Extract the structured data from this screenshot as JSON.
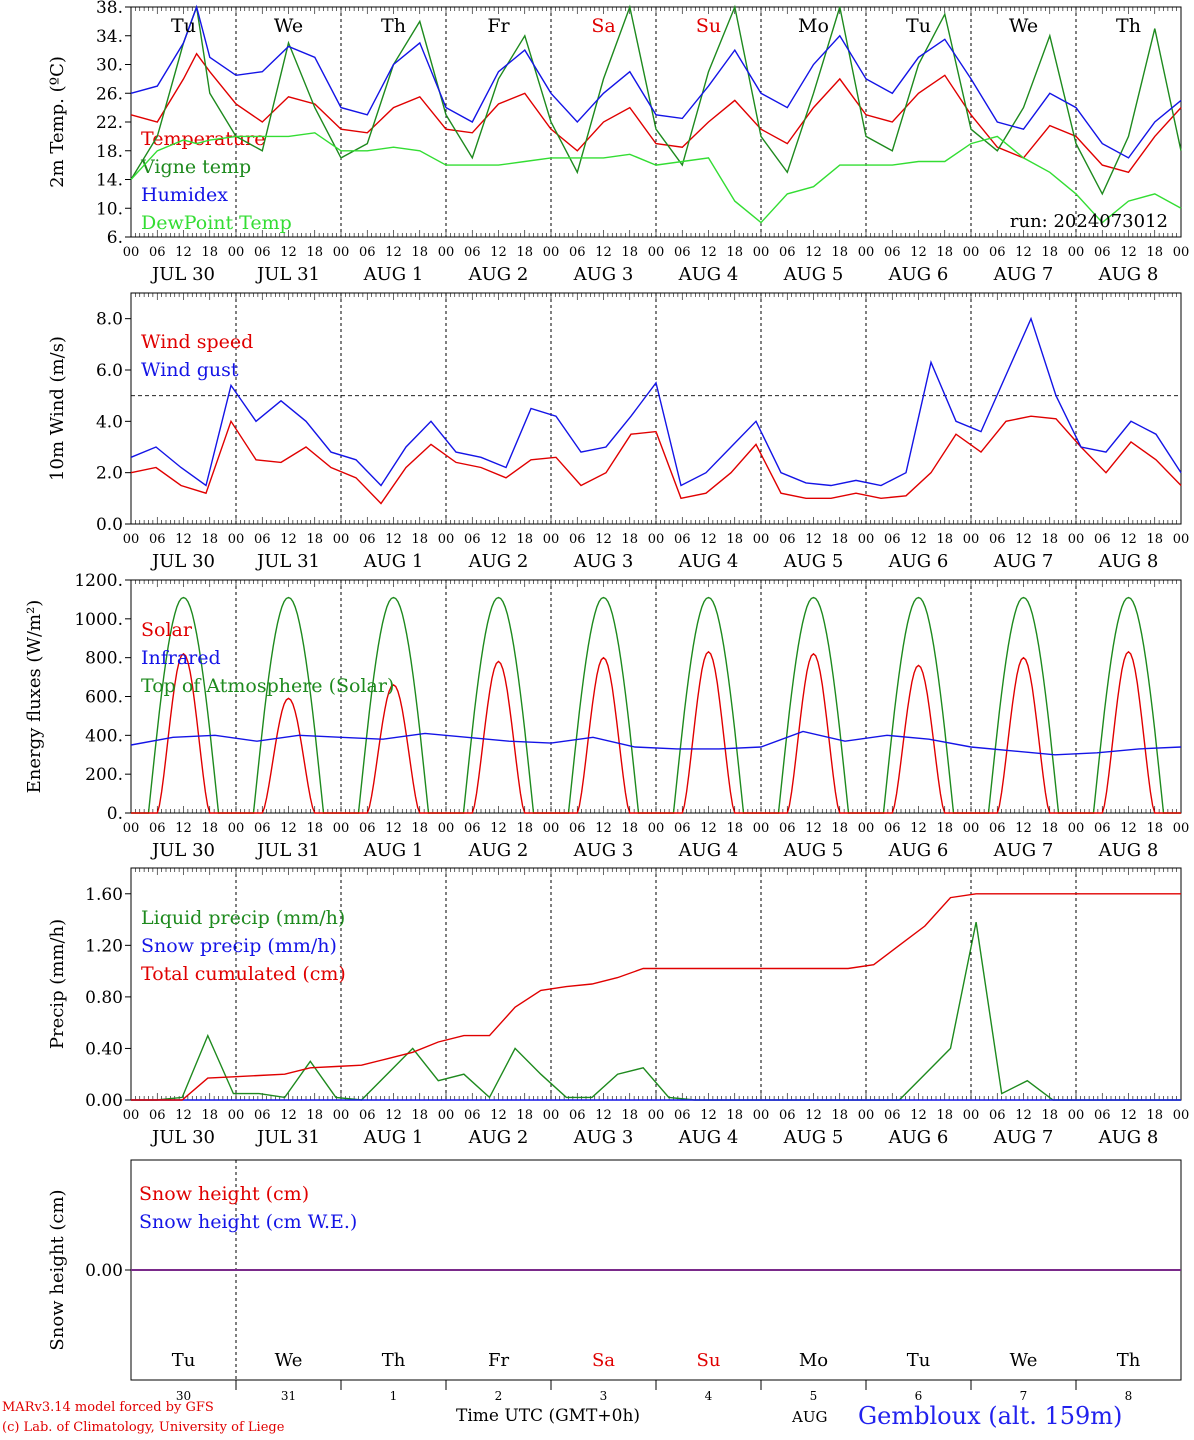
{
  "run_label": "run: 2024073012",
  "colors": {
    "red": "#e00000",
    "green": "#1e8a1e",
    "blue": "#1414e6",
    "lightgreen": "#33dd33",
    "purple": "#7a2a8a"
  },
  "weekdays": [
    {
      "label": "Tu",
      "color": "#000000"
    },
    {
      "label": "We",
      "color": "#000000"
    },
    {
      "label": "Th",
      "color": "#000000"
    },
    {
      "label": "Fr",
      "color": "#000000"
    },
    {
      "label": "Sa",
      "color": "#e00000"
    },
    {
      "label": "Su",
      "color": "#e00000"
    },
    {
      "label": "Mo",
      "color": "#000000"
    },
    {
      "label": "Tu",
      "color": "#000000"
    },
    {
      "label": "We",
      "color": "#000000"
    },
    {
      "label": "Th",
      "color": "#000000"
    }
  ],
  "dates": [
    "JUL 30",
    "JUL 31",
    "AUG 1",
    "AUG 2",
    "AUG 3",
    "AUG 4",
    "AUG 5",
    "AUG 6",
    "AUG 7",
    "AUG 8"
  ],
  "hour_ticks": [
    "00",
    "06",
    "12",
    "18"
  ],
  "day_numbers": [
    "30",
    "31",
    "1",
    "2",
    "3",
    "4",
    "5",
    "6",
    "7",
    "8"
  ],
  "footer": {
    "model": "MARv3.14 model forced by GFS",
    "lab": "(c) Lab. of Climatology, University of Liege",
    "time_label": "Time UTC (GMT+0h)",
    "month": "AUG",
    "station": "Gembloux (alt. 159m)"
  },
  "chart_data": [
    {
      "type": "line",
      "ylabel": "2m Temp. (ºC)",
      "ylim": [
        6,
        38
      ],
      "yticks": [
        "6.",
        "10.",
        "14.",
        "18.",
        "22.",
        "26.",
        "30.",
        "34.",
        "38."
      ],
      "grid": "vertical dashed at day boundaries",
      "x_hours": [
        0,
        6,
        12,
        15,
        18,
        24,
        30,
        36,
        42,
        48,
        54,
        60,
        66,
        72,
        78,
        84,
        90,
        96,
        102,
        108,
        114,
        120,
        126,
        132,
        138,
        144,
        150,
        156,
        162,
        168,
        174,
        180,
        186,
        192,
        198,
        204,
        210,
        216,
        222,
        228,
        234,
        240
      ],
      "series": [
        {
          "name": "Temperature",
          "color": "red",
          "values": [
            23,
            22,
            28,
            31.5,
            29,
            24.5,
            22,
            25.5,
            24.5,
            21,
            20.5,
            24,
            25.5,
            21,
            20.5,
            24.5,
            26,
            21,
            18,
            22,
            24,
            19,
            18.5,
            22,
            25,
            21,
            19,
            24,
            28,
            23,
            22,
            26,
            28.5,
            23,
            18.5,
            17,
            21.5,
            20,
            16,
            15,
            20,
            24
          ]
        },
        {
          "name": "Vigne temp",
          "color": "green",
          "values": [
            14,
            20,
            33,
            39,
            26,
            20,
            18,
            33,
            24,
            17,
            19,
            30,
            36,
            23,
            17,
            28,
            34,
            22,
            15,
            28,
            38,
            21,
            16,
            29,
            38,
            20,
            15,
            26,
            38,
            20,
            18,
            30,
            37,
            21,
            18,
            24,
            34,
            19,
            12,
            20,
            35,
            18
          ]
        },
        {
          "name": "Humidex",
          "color": "blue",
          "values": [
            26,
            27,
            33,
            38,
            31,
            28.5,
            29,
            32.5,
            31,
            24,
            23,
            30,
            33,
            24,
            22,
            29,
            32,
            26,
            22,
            26,
            29,
            23,
            22.5,
            27,
            32,
            26,
            24,
            30,
            34,
            28,
            26,
            31,
            33.5,
            28,
            22,
            21,
            26,
            24,
            19,
            17,
            22,
            25
          ]
        },
        {
          "name": "DewPoint Temp",
          "color": "lightgreen",
          "values": [
            14,
            18,
            19.5,
            19,
            19.5,
            20,
            20,
            20,
            20.5,
            18,
            18,
            18.5,
            18,
            16,
            16,
            16,
            16.5,
            17,
            17,
            17,
            17.5,
            16,
            16.5,
            17,
            11,
            8,
            12,
            13,
            16,
            16,
            16,
            16.5,
            16.5,
            19,
            20,
            17,
            15,
            12,
            8,
            11,
            12,
            10
          ]
        }
      ]
    },
    {
      "type": "line",
      "ylabel": "10m Wind (m/s)",
      "ylim": [
        0,
        9
      ],
      "yticks": [
        "0.0",
        "2.0",
        "4.0",
        "6.0",
        "8.0"
      ],
      "reference_line": 5,
      "series": [
        {
          "name": "Wind speed",
          "color": "red",
          "values": [
            2,
            2.2,
            1.5,
            1.2,
            4,
            2.5,
            2.4,
            3,
            2.2,
            1.8,
            0.8,
            2.2,
            3.1,
            2.4,
            2.2,
            1.8,
            2.5,
            2.6,
            1.5,
            2,
            3.5,
            3.6,
            1,
            1.2,
            2,
            3.1,
            1.2,
            1,
            1,
            1.2,
            1,
            1.1,
            2,
            3.5,
            2.8,
            4,
            4.2,
            4.1,
            3,
            2,
            3.2,
            2.5,
            1.5
          ]
        },
        {
          "name": "Wind gust",
          "color": "blue",
          "values": [
            2.6,
            3,
            2.2,
            1.5,
            5.4,
            4,
            4.8,
            4,
            2.8,
            2.5,
            1.5,
            3,
            4,
            2.8,
            2.6,
            2.2,
            4.5,
            4.2,
            2.8,
            3,
            4.2,
            5.5,
            1.5,
            2,
            3,
            4,
            2,
            1.6,
            1.5,
            1.7,
            1.5,
            2,
            6.3,
            4,
            3.6,
            5.8,
            8,
            5,
            3,
            2.8,
            4,
            3.5,
            2
          ]
        }
      ]
    },
    {
      "type": "line",
      "ylabel": "Energy fluxes (W/m²)",
      "ylim": [
        0,
        1200
      ],
      "yticks": [
        "0.",
        "200.",
        "400.",
        "600.",
        "800.",
        "1000.",
        "1200."
      ],
      "series": [
        {
          "name": "Solar",
          "color": "red",
          "day_peaks": [
            820,
            590,
            660,
            780,
            800,
            830,
            820,
            760,
            800,
            830
          ]
        },
        {
          "name": "Infrared",
          "color": "blue",
          "values": [
            350,
            390,
            400,
            370,
            400,
            390,
            380,
            410,
            390,
            370,
            360,
            390,
            340,
            330,
            330,
            340,
            420,
            370,
            400,
            380,
            340,
            320,
            300,
            310,
            330,
            340
          ]
        },
        {
          "name": "Top of Atmosphere (Solar)",
          "color": "green",
          "day_peak": 1110
        }
      ]
    },
    {
      "type": "line",
      "ylabel": "Precip (mm/h)",
      "ylim": [
        0,
        1.8
      ],
      "yticks": [
        "0.00",
        "0.40",
        "0.80",
        "1.20",
        "1.60"
      ],
      "series": [
        {
          "name": "Liquid precip (mm/h)",
          "color": "green",
          "values": [
            0,
            0,
            0.02,
            0.5,
            0.05,
            0.05,
            0.02,
            0.3,
            0.02,
            0,
            0.2,
            0.4,
            0.15,
            0.2,
            0.02,
            0.4,
            0.2,
            0.02,
            0.02,
            0.2,
            0.25,
            0.02,
            0,
            0,
            0,
            0,
            0,
            0,
            0,
            0,
            0,
            0.2,
            0.4,
            1.38,
            0.05,
            0.15,
            0,
            0,
            0,
            0,
            0,
            0
          ]
        },
        {
          "name": "Snow precip (mm/h)",
          "color": "blue",
          "values": [
            0,
            0,
            0,
            0,
            0,
            0,
            0,
            0,
            0,
            0,
            0,
            0,
            0,
            0,
            0,
            0,
            0,
            0,
            0,
            0,
            0,
            0,
            0,
            0,
            0,
            0,
            0,
            0,
            0,
            0,
            0,
            0,
            0,
            0,
            0,
            0,
            0,
            0,
            0,
            0,
            0,
            0
          ]
        },
        {
          "name": "Total cumulated (cm)",
          "color": "red",
          "values": [
            0,
            0,
            0,
            0.17,
            0.18,
            0.19,
            0.2,
            0.25,
            0.26,
            0.27,
            0.32,
            0.37,
            0.45,
            0.5,
            0.5,
            0.72,
            0.85,
            0.88,
            0.9,
            0.95,
            1.02,
            1.02,
            1.02,
            1.02,
            1.02,
            1.02,
            1.02,
            1.02,
            1.02,
            1.05,
            1.2,
            1.35,
            1.57,
            1.6,
            1.6,
            1.6,
            1.6,
            1.6,
            1.6,
            1.6,
            1.6,
            1.6
          ]
        }
      ]
    },
    {
      "type": "line",
      "ylabel": "Snow height (cm)",
      "yticks": [
        "0.00"
      ],
      "series": [
        {
          "name": "Snow height (cm)",
          "color": "red",
          "values": [
            0,
            0
          ]
        },
        {
          "name": "Snow height (cm W.E.)",
          "color": "blue",
          "values": [
            0,
            0
          ]
        }
      ]
    }
  ]
}
